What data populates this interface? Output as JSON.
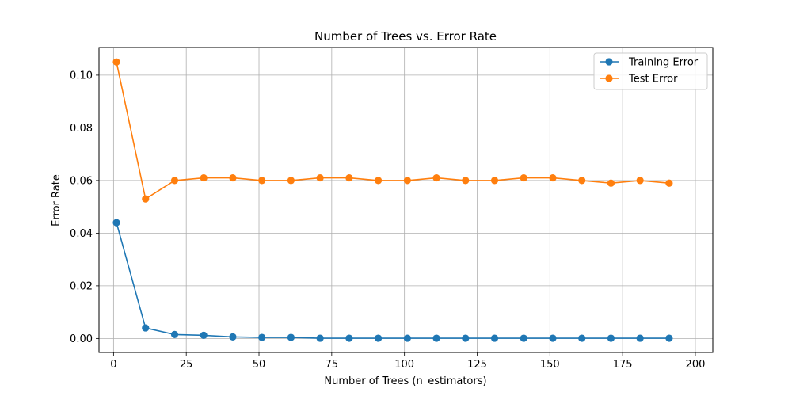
{
  "chart_data": {
    "type": "line",
    "title": "Number of Trees vs. Error Rate",
    "xlabel": "Number of Trees (n_estimators)",
    "ylabel": "Error Rate",
    "xlim": [
      -5,
      206
    ],
    "ylim": [
      -0.0053,
      0.1105
    ],
    "xticks": [
      0,
      25,
      50,
      75,
      100,
      125,
      150,
      175,
      200
    ],
    "yticks": [
      0.0,
      0.02,
      0.04,
      0.06,
      0.08,
      0.1
    ],
    "xtick_labels": [
      "0",
      "25",
      "50",
      "75",
      "100",
      "125",
      "150",
      "175",
      "200"
    ],
    "ytick_labels": [
      "0.00",
      "0.02",
      "0.04",
      "0.06",
      "0.08",
      "0.10"
    ],
    "grid": true,
    "legend_position": "top-right",
    "x": [
      1,
      11,
      21,
      31,
      41,
      51,
      61,
      71,
      81,
      91,
      101,
      111,
      121,
      131,
      141,
      151,
      161,
      171,
      181,
      191
    ],
    "series": [
      {
        "name": "Training Error",
        "color": "#1f77b4",
        "values": [
          0.044,
          0.004,
          0.0015,
          0.0012,
          0.0006,
          0.0004,
          0.0004,
          0.0001,
          0.0001,
          0.0001,
          0.0001,
          0.0001,
          0.0001,
          0.0001,
          0.0001,
          0.0001,
          0.0001,
          0.0001,
          0.0001,
          0.0001
        ]
      },
      {
        "name": "Test Error",
        "color": "#ff7f0e",
        "values": [
          0.105,
          0.053,
          0.06,
          0.061,
          0.061,
          0.06,
          0.06,
          0.061,
          0.061,
          0.06,
          0.06,
          0.061,
          0.06,
          0.06,
          0.061,
          0.061,
          0.06,
          0.059,
          0.06,
          0.059
        ]
      }
    ]
  }
}
